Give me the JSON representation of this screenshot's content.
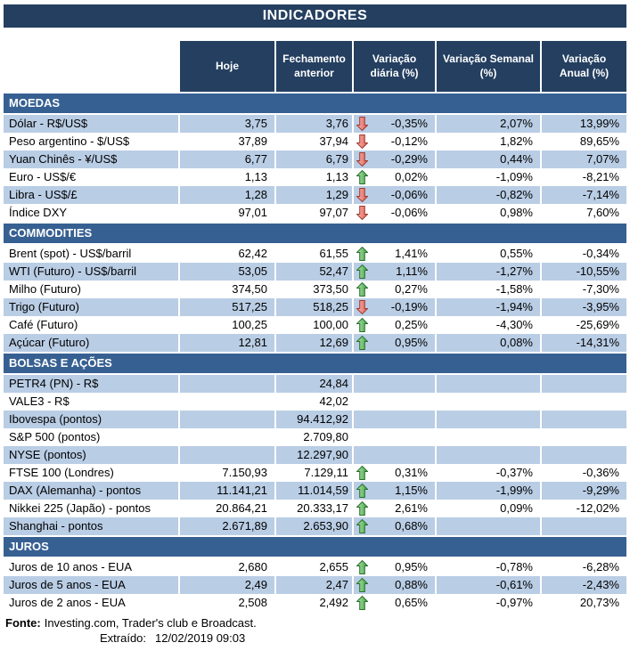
{
  "title": "INDICADORES",
  "colors": {
    "navy": "#243F60",
    "section_blue": "#376092",
    "stripe": "#B9CDE5",
    "up_green": "#3DA448",
    "down_red": "#E2574B"
  },
  "columns": {
    "hoje": "Hoje",
    "fechamento": "Fechamento anterior",
    "diaria": "Variação diária (%)",
    "semanal": "Variação Semanal (%)",
    "anual": "Variação Anual (%)"
  },
  "sections": [
    {
      "label": "MOEDAS",
      "rows": [
        {
          "label": "Dólar - R$/US$",
          "hoje": "3,75",
          "fechamento": "3,76",
          "arrow": "down",
          "diaria": "-0,35%",
          "semanal": "2,07%",
          "anual": "13,99%"
        },
        {
          "label": "Peso argentino - $/US$",
          "hoje": "37,89",
          "fechamento": "37,94",
          "arrow": "down",
          "diaria": "-0,12%",
          "semanal": "1,82%",
          "anual": "89,65%"
        },
        {
          "label": "Yuan Chinês - ¥/US$",
          "hoje": "6,77",
          "fechamento": "6,79",
          "arrow": "down",
          "diaria": "-0,29%",
          "semanal": "0,44%",
          "anual": "7,07%"
        },
        {
          "label": "Euro - US$/€",
          "hoje": "1,13",
          "fechamento": "1,13",
          "arrow": "up",
          "diaria": "0,02%",
          "semanal": "-1,09%",
          "anual": "-8,21%"
        },
        {
          "label": "Libra - US$/£",
          "hoje": "1,28",
          "fechamento": "1,29",
          "arrow": "down",
          "diaria": "-0,06%",
          "semanal": "-0,82%",
          "anual": "-7,14%"
        },
        {
          "label": "Índice DXY",
          "hoje": "97,01",
          "fechamento": "97,07",
          "arrow": "down",
          "diaria": "-0,06%",
          "semanal": "0,98%",
          "anual": "7,60%"
        }
      ]
    },
    {
      "label": "COMMODITIES",
      "rows": [
        {
          "label": "Brent (spot) - US$/barril",
          "hoje": "62,42",
          "fechamento": "61,55",
          "arrow": "up",
          "diaria": "1,41%",
          "semanal": "0,55%",
          "anual": "-0,34%"
        },
        {
          "label": "WTI (Futuro) - US$/barril",
          "hoje": "53,05",
          "fechamento": "52,47",
          "arrow": "up",
          "diaria": "1,11%",
          "semanal": "-1,27%",
          "anual": "-10,55%"
        },
        {
          "label": "Milho (Futuro)",
          "hoje": "374,50",
          "fechamento": "373,50",
          "arrow": "up",
          "diaria": "0,27%",
          "semanal": "-1,58%",
          "anual": "-7,30%"
        },
        {
          "label": "Trigo (Futuro)",
          "hoje": "517,25",
          "fechamento": "518,25",
          "arrow": "down",
          "diaria": "-0,19%",
          "semanal": "-1,94%",
          "anual": "-3,95%"
        },
        {
          "label": "Café (Futuro)",
          "hoje": "100,25",
          "fechamento": "100,00",
          "arrow": "up",
          "diaria": "0,25%",
          "semanal": "-4,30%",
          "anual": "-25,69%"
        },
        {
          "label": "Açúcar (Futuro)",
          "hoje": "12,81",
          "fechamento": "12,69",
          "arrow": "up",
          "diaria": "0,95%",
          "semanal": "0,08%",
          "anual": "-14,31%"
        }
      ]
    },
    {
      "label": "BOLSAS E AÇÕES",
      "rows": [
        {
          "label": "PETR4 (PN) - R$",
          "hoje": "",
          "fechamento": "24,84",
          "arrow": null,
          "diaria": "",
          "semanal": "",
          "anual": ""
        },
        {
          "label": "VALE3 - R$",
          "hoje": "",
          "fechamento": "42,02",
          "arrow": null,
          "diaria": "",
          "semanal": "",
          "anual": ""
        },
        {
          "label": "Ibovespa (pontos)",
          "hoje": "",
          "fechamento": "94.412,92",
          "arrow": null,
          "diaria": "",
          "semanal": "",
          "anual": ""
        },
        {
          "label": "S&P 500 (pontos)",
          "hoje": "",
          "fechamento": "2.709,80",
          "arrow": null,
          "diaria": "",
          "semanal": "",
          "anual": ""
        },
        {
          "label": "NYSE (pontos)",
          "hoje": "",
          "fechamento": "12.297,90",
          "arrow": null,
          "diaria": "",
          "semanal": "",
          "anual": ""
        },
        {
          "label": "FTSE 100 (Londres)",
          "hoje": "7.150,93",
          "fechamento": "7.129,11",
          "arrow": "up",
          "diaria": "0,31%",
          "semanal": "-0,37%",
          "anual": "-0,36%"
        },
        {
          "label": "DAX (Alemanha) - pontos",
          "hoje": "11.141,21",
          "fechamento": "11.014,59",
          "arrow": "up",
          "diaria": "1,15%",
          "semanal": "-1,99%",
          "anual": "-9,29%"
        },
        {
          "label": "Nikkei 225 (Japão) - pontos",
          "hoje": "20.864,21",
          "fechamento": "20.333,17",
          "arrow": "up",
          "diaria": "2,61%",
          "semanal": "0,09%",
          "anual": "-12,02%"
        },
        {
          "label": "Shanghai - pontos",
          "hoje": "2.671,89",
          "fechamento": "2.653,90",
          "arrow": "up",
          "diaria": "0,68%",
          "semanal": "",
          "anual": ""
        }
      ]
    },
    {
      "label": "JUROS",
      "rows": [
        {
          "label": "Juros de 10 anos - EUA",
          "hoje": "2,680",
          "fechamento": "2,655",
          "arrow": "up",
          "diaria": "0,95%",
          "semanal": "-0,78%",
          "anual": "-6,28%"
        },
        {
          "label": "Juros de 5 anos - EUA",
          "hoje": "2,49",
          "fechamento": "2,47",
          "arrow": "up",
          "diaria": "0,88%",
          "semanal": "-0,61%",
          "anual": "-2,43%"
        },
        {
          "label": "Juros de 2 anos - EUA",
          "hoje": "2,508",
          "fechamento": "2,492",
          "arrow": "up",
          "diaria": "0,65%",
          "semanal": "-0,97%",
          "anual": "20,73%"
        }
      ]
    }
  ],
  "footer": {
    "source_label": "Fonte:",
    "source_text": "Investing.com, Trader's club e Broadcast.",
    "extracted_label": "Extraído:",
    "extracted_value": "12/02/2019 09:03"
  }
}
